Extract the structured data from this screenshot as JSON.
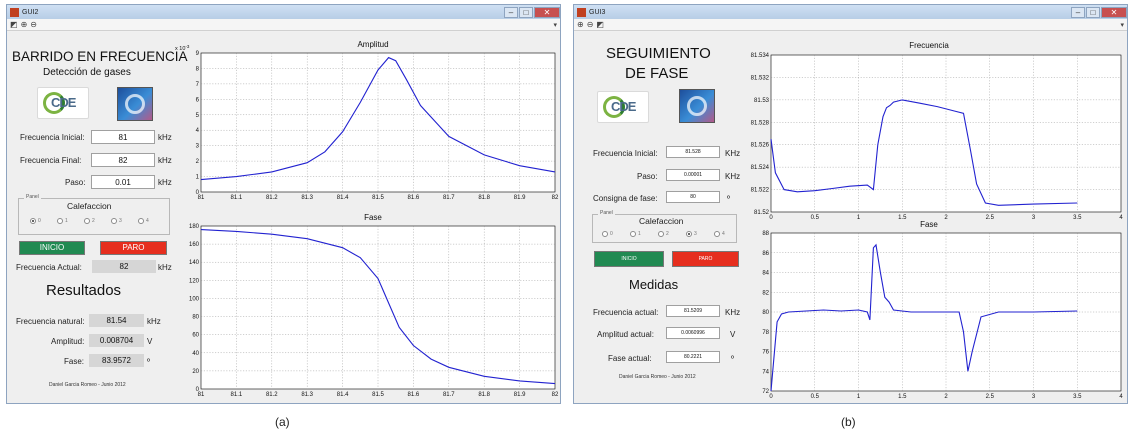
{
  "windows": {
    "a": {
      "title": "GUI2",
      "heading_line1": "BARRIDO EN FRECUENCIA",
      "heading_line2": "Detección de gases",
      "logo_cde_text": "CDE",
      "inputs": {
        "freq_inicial": {
          "label": "Frecuencia Inicial:",
          "value": "81",
          "unit": "kHz"
        },
        "freq_final": {
          "label": "Frecuencia Final:",
          "value": "82",
          "unit": "kHz"
        },
        "paso": {
          "label": "Paso:",
          "value": "0.01",
          "unit": "kHz"
        }
      },
      "panel": {
        "title": "Panel",
        "heading": "Calefaccion",
        "options": [
          "0",
          "1",
          "2",
          "3",
          "4"
        ],
        "selected": "0"
      },
      "buttons": {
        "start": "INICIO",
        "stop": "PARO"
      },
      "freq_actual": {
        "label": "Frecuencia Actual:",
        "value": "82",
        "unit": "kHz"
      },
      "results_title": "Resultados",
      "results": [
        {
          "label": "Frecuencia natural:",
          "value": "81.54",
          "unit": "kHz"
        },
        {
          "label": "Amplitud:",
          "value": "0.008704",
          "unit": "V"
        },
        {
          "label": "Fase:",
          "value": "83.9572",
          "unit": "º"
        }
      ],
      "credit": "Daniel Garcia Romeo - Junio 2012",
      "charts": {
        "amplitude": {
          "title": "Amplitud",
          "exponent": "x 10^-3",
          "exp_base": "x 10",
          "exp_power": "-3"
        },
        "phase": {
          "title": "Fase"
        }
      }
    },
    "b": {
      "title": "GUI3",
      "heading_line1": "SEGUIMIENTO",
      "heading_line2": "DE FASE",
      "logo_cde_text": "CDE",
      "inputs": {
        "freq_inicial": {
          "label": "Frecuencia Inicial:",
          "value": "81.528",
          "unit": "KHz"
        },
        "paso": {
          "label": "Paso:",
          "value": "0.00001",
          "unit": "KHz"
        },
        "consigna": {
          "label": "Consigna de fase:",
          "value": "80",
          "unit": "º"
        }
      },
      "panel": {
        "title": "Panel",
        "heading": "Calefaccion",
        "options": [
          "0",
          "1",
          "2",
          "3",
          "4"
        ],
        "selected": "3"
      },
      "buttons": {
        "start": "INICIO",
        "stop": "PARO"
      },
      "measures_title": "Medidas",
      "measures": [
        {
          "label": "Frecuencia actual:",
          "value": "81.5209",
          "unit": "KHz"
        },
        {
          "label": "Amplitud actual:",
          "value": "0.0060996",
          "unit": "V"
        },
        {
          "label": "Fase actual:",
          "value": "80.2221",
          "unit": "º"
        }
      ],
      "credit": "Daniel Garcia Romeo - Junio 2012",
      "charts": {
        "frequency": {
          "title": "Frecuencia"
        },
        "phase": {
          "title": "Fase"
        }
      }
    }
  },
  "captions": [
    "(a)",
    "(b)"
  ],
  "colors": {
    "line": "#2222d0",
    "green_button": "#218a52",
    "red_button": "#e62e1e"
  },
  "chart_data": [
    {
      "id": "a-amplitude",
      "type": "line",
      "title": "Amplitud",
      "xlim": [
        81,
        82
      ],
      "ylim": [
        0,
        9
      ],
      "y_scale_note": "x 10^-3",
      "xticks": [
        81,
        81.1,
        81.2,
        81.3,
        81.4,
        81.5,
        81.6,
        81.7,
        81.8,
        81.9,
        82
      ],
      "yticks": [
        0,
        1,
        2,
        3,
        4,
        5,
        6,
        7,
        8,
        9
      ],
      "grid": true,
      "series": [
        {
          "x": [
            81,
            81.1,
            81.2,
            81.3,
            81.35,
            81.4,
            81.45,
            81.5,
            81.53,
            81.55,
            81.58,
            81.62,
            81.7,
            81.8,
            81.9,
            82
          ],
          "y": [
            0.8,
            1.0,
            1.3,
            1.9,
            2.6,
            3.9,
            5.8,
            7.9,
            8.7,
            8.5,
            7.3,
            5.6,
            3.6,
            2.4,
            1.7,
            1.3
          ]
        }
      ]
    },
    {
      "id": "a-phase",
      "type": "line",
      "title": "Fase",
      "xlim": [
        81,
        82
      ],
      "ylim": [
        0,
        180
      ],
      "xticks": [
        81,
        81.1,
        81.2,
        81.3,
        81.4,
        81.5,
        81.6,
        81.7,
        81.8,
        81.9,
        82
      ],
      "yticks": [
        0,
        20,
        40,
        60,
        80,
        100,
        120,
        140,
        160,
        180
      ],
      "grid": true,
      "series": [
        {
          "x": [
            81,
            81.1,
            81.2,
            81.3,
            81.4,
            81.45,
            81.5,
            81.53,
            81.56,
            81.6,
            81.65,
            81.7,
            81.8,
            81.9,
            82
          ],
          "y": [
            176,
            174,
            171,
            166,
            156,
            145,
            122,
            95,
            68,
            48,
            33,
            24,
            14,
            9,
            6
          ]
        }
      ]
    },
    {
      "id": "b-frequency",
      "type": "line",
      "title": "Frecuencia",
      "xlim": [
        0,
        4
      ],
      "ylim": [
        81.52,
        81.534
      ],
      "xticks": [
        0,
        0.5,
        1,
        1.5,
        2,
        2.5,
        3,
        3.5,
        4
      ],
      "yticks": [
        81.52,
        81.522,
        81.524,
        81.526,
        81.528,
        81.53,
        81.532,
        81.534
      ],
      "grid": true,
      "series": [
        {
          "x": [
            0,
            0.05,
            0.15,
            0.3,
            0.5,
            0.7,
            0.9,
            1.1,
            1.17,
            1.22,
            1.28,
            1.32,
            1.36,
            1.4,
            1.5,
            1.7,
            1.9,
            2.1,
            2.2,
            2.28,
            2.35,
            2.45,
            2.6,
            3.0,
            3.5
          ],
          "y": [
            81.5265,
            81.5235,
            81.522,
            81.5218,
            81.5219,
            81.5221,
            81.5223,
            81.5224,
            81.522,
            81.526,
            81.5285,
            81.5293,
            81.5295,
            81.5298,
            81.53,
            81.5297,
            81.5294,
            81.529,
            81.5288,
            81.5255,
            81.5225,
            81.5208,
            81.5206,
            81.5207,
            81.5208
          ]
        }
      ]
    },
    {
      "id": "b-phase",
      "type": "line",
      "title": "Fase",
      "xlim": [
        0,
        4
      ],
      "ylim": [
        72,
        88
      ],
      "xticks": [
        0,
        0.5,
        1,
        1.5,
        2,
        2.5,
        3,
        3.5,
        4
      ],
      "yticks": [
        72,
        74,
        76,
        78,
        80,
        82,
        84,
        86,
        88
      ],
      "grid": true,
      "series": [
        {
          "x": [
            0,
            0.03,
            0.07,
            0.12,
            0.2,
            0.4,
            0.6,
            0.8,
            1.0,
            1.1,
            1.13,
            1.17,
            1.2,
            1.25,
            1.3,
            1.35,
            1.4,
            1.6,
            1.9,
            2.15,
            2.2,
            2.25,
            2.3,
            2.4,
            2.6,
            3.0,
            3.5
          ],
          "y": [
            72,
            75,
            79,
            79.8,
            80,
            80.1,
            80.2,
            80.1,
            80.2,
            80,
            79.2,
            86.5,
            86.8,
            84,
            81.5,
            81,
            80.2,
            80,
            80,
            80,
            78,
            74,
            76,
            79.5,
            80,
            80,
            80.1
          ]
        }
      ]
    }
  ]
}
